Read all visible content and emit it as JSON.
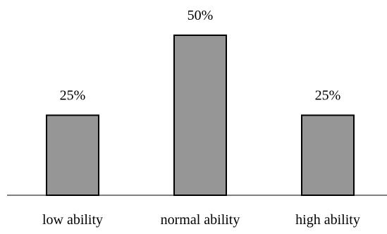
{
  "chart_data": {
    "type": "bar",
    "categories": [
      "low ability",
      "normal ability",
      "high ability"
    ],
    "values": [
      25,
      50,
      25
    ],
    "data_labels": [
      "25%",
      "50%",
      "25%"
    ],
    "value_unit": "%",
    "ylim": [
      0,
      50
    ],
    "title": "",
    "xlabel": "",
    "ylabel": "",
    "grid": false,
    "legend": "none",
    "colors": {
      "bar_fill": "#969696",
      "bar_stroke": "#000000",
      "axis": "#000000",
      "text": "#000000"
    }
  }
}
